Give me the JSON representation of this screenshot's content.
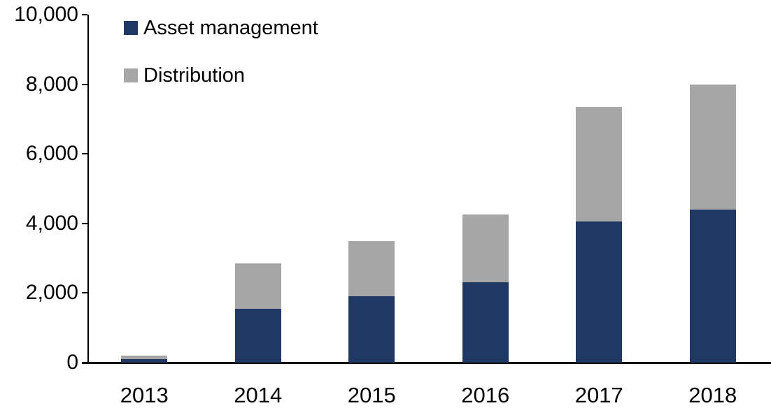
{
  "chart_data": {
    "type": "bar",
    "stacked": true,
    "title": "",
    "xlabel": "",
    "ylabel": "",
    "grid": false,
    "legend_position": "top-left",
    "categories": [
      "2013",
      "2014",
      "2015",
      "2016",
      "2017",
      "2018"
    ],
    "series": [
      {
        "name": "Asset management",
        "color": "#1F3864",
        "values": [
          100,
          1550,
          1900,
          2300,
          4050,
          4400
        ]
      },
      {
        "name": "Distribution",
        "color": "#A6A6A6",
        "values": [
          100,
          1300,
          1600,
          1950,
          3300,
          3600
        ]
      }
    ],
    "totals": [
      200,
      2850,
      3500,
      4250,
      7350,
      8000
    ],
    "ylim": [
      0,
      10000
    ],
    "ytick_interval": 2000,
    "ytick_labels": [
      "0",
      "2,000",
      "4,000",
      "6,000",
      "8,000",
      "10,000"
    ],
    "axis_color": "#000000",
    "background_color": "#FFFFFF"
  }
}
